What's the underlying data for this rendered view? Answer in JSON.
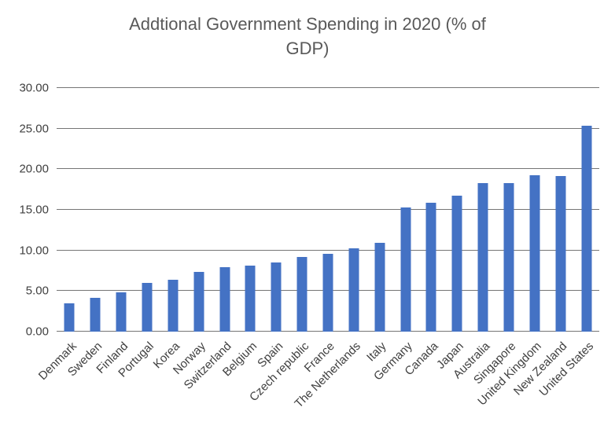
{
  "chart_data": {
    "type": "bar",
    "title": "Addtional Government Spending in 2020 (% of GDP)",
    "title_lines": [
      "Addtional Government Spending in 2020 (% of",
      "GDP)"
    ],
    "categories": [
      "Denmark",
      "Sweden",
      "Finland",
      "Portugal",
      "Korea",
      "Norway",
      "Switzerland",
      "Belgium",
      "Spain",
      "Czech republic",
      "France",
      "The Netherlands",
      "Italy",
      "Germany",
      "Canada",
      "Japan",
      "Australia",
      "Singapore",
      "United Kingdom",
      "New Zealand",
      "United States"
    ],
    "values": [
      3.5,
      4.2,
      4.8,
      6.0,
      6.4,
      7.4,
      7.9,
      8.1,
      8.5,
      9.2,
      9.6,
      10.3,
      10.9,
      15.3,
      15.9,
      16.7,
      18.3,
      18.3,
      19.3,
      19.2,
      25.4
    ],
    "xlabel": "",
    "ylabel": "",
    "ylim": [
      0,
      30
    ],
    "yticks": [
      0,
      5,
      10,
      15,
      20,
      25,
      30
    ],
    "ytick_labels": [
      "0.00",
      "5.00",
      "10.00",
      "15.00",
      "20.00",
      "25.00",
      "30.00"
    ],
    "grid": "horizontal",
    "legend": "none",
    "bar_color": "#4472C4"
  },
  "colors": {
    "background": "#FFFFFF",
    "title_text": "#595959",
    "axis_text": "#404040",
    "gridline": "#757575"
  }
}
